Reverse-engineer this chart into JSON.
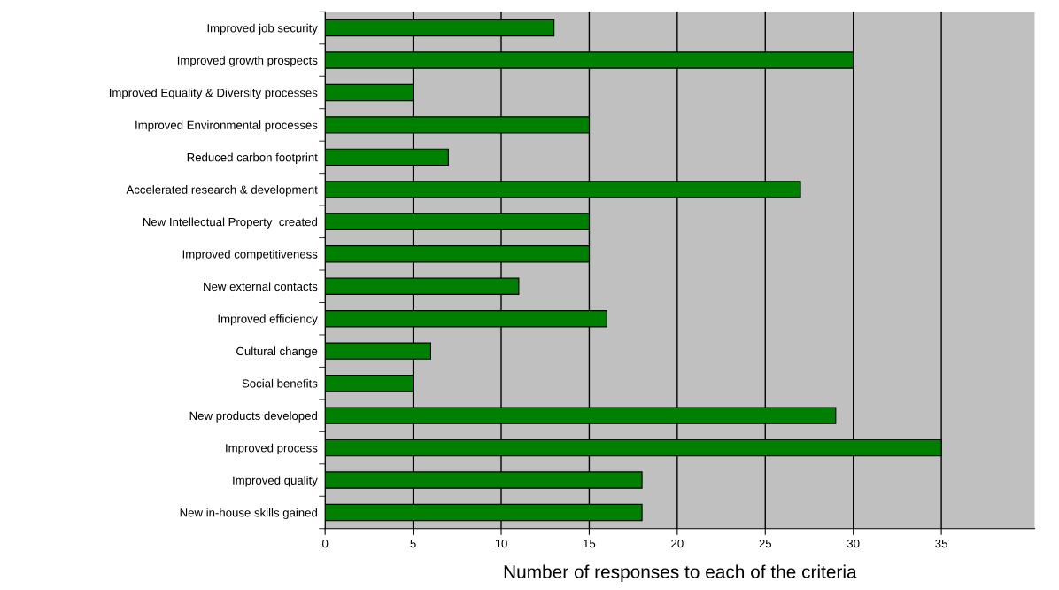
{
  "chart_data": {
    "type": "bar",
    "orientation": "horizontal",
    "xlabel": "Number of responses to each of the criteria",
    "categories": [
      "Improved job security",
      "Improved growth prospects",
      "Improved Equality & Diversity processes",
      "Improved Environmental processes",
      "Reduced carbon footprint",
      "Accelerated research & development",
      "New Intellectual Property  created",
      "Improved competitiveness",
      "New external contacts",
      "Improved efficiency",
      "Cultural change",
      "Social benefits",
      "New products developed",
      "Improved process",
      "Improved quality",
      "New in-house skills gained"
    ],
    "values": [
      13,
      30,
      5,
      15,
      7,
      27,
      15,
      15,
      11,
      16,
      6,
      5,
      29,
      35,
      18,
      18
    ],
    "color": "#008000",
    "xlim": [
      0,
      40.3
    ],
    "xticks": [
      0,
      5,
      10,
      15,
      20,
      25,
      30,
      35
    ],
    "grid": "x",
    "legend": false
  }
}
